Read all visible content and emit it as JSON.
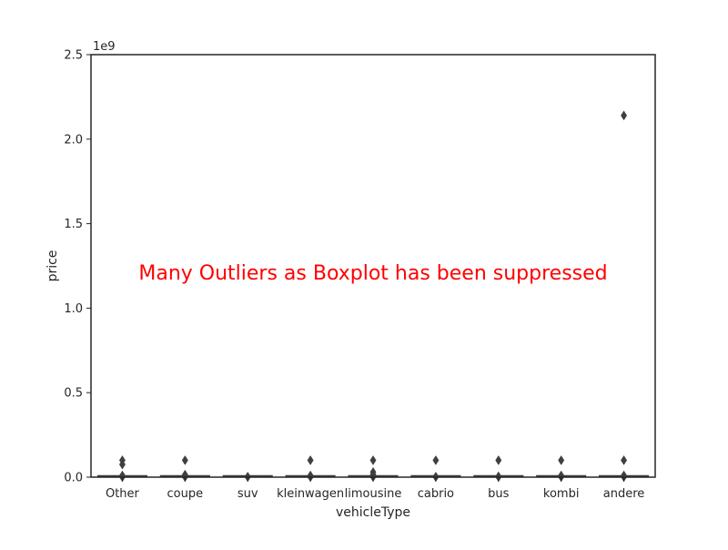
{
  "chart_data": {
    "type": "box",
    "title": "",
    "xlabel": "vehicleType",
    "ylabel": "price",
    "y_offset_text": "1e9",
    "y_scale_multiplier": 1000000000,
    "ylim": [
      0,
      2500000000
    ],
    "yticks": [
      {
        "value": 0,
        "label": "0.0"
      },
      {
        "value": 500000000,
        "label": "0.5"
      },
      {
        "value": 1000000000,
        "label": "1.0"
      },
      {
        "value": 1500000000,
        "label": "1.5"
      },
      {
        "value": 2000000000,
        "label": "2.0"
      },
      {
        "value": 2500000000,
        "label": "2.5"
      }
    ],
    "grid": false,
    "categories": [
      "Other",
      "coupe",
      "suv",
      "kleinwagen",
      "limousine",
      "cabrio",
      "bus",
      "kombi",
      "andere"
    ],
    "outliers": [
      [
        100000000,
        75000000,
        10000000,
        3000000,
        1000000
      ],
      [
        100000000,
        15000000,
        3000000,
        1000000
      ],
      [
        3000000,
        1000000
      ],
      [
        100000000,
        10000000,
        3000000,
        1000000
      ],
      [
        100000000,
        30000000,
        15000000,
        5000000,
        1000000
      ],
      [
        100000000,
        3000000,
        1000000
      ],
      [
        100000000,
        5000000,
        1000000
      ],
      [
        100000000,
        10000000,
        3000000,
        1000000
      ],
      [
        2140000000,
        100000000,
        10000000,
        1000000
      ]
    ],
    "annotation": "Many Outliers as Boxplot has been suppressed",
    "colors": {
      "outlier": "#3f3f3f",
      "axes": "#262626",
      "annotation": "#ff0000",
      "box": "#3f3f3f"
    }
  }
}
